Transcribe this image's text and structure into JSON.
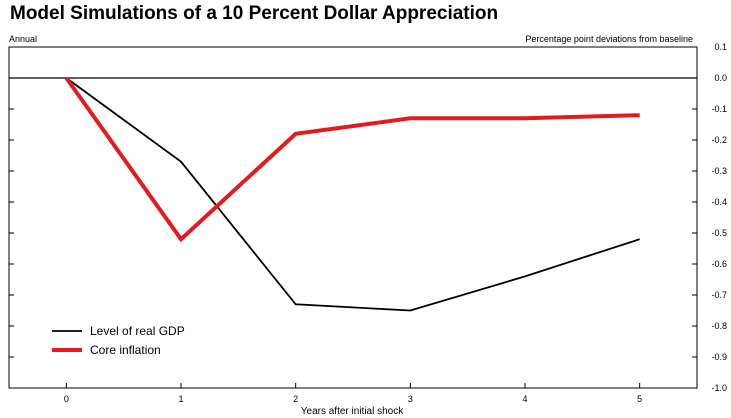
{
  "chart_data": {
    "type": "line",
    "title": "Model Simulations of a 10 Percent Dollar Appreciation",
    "left_note": "Annual",
    "right_note": "Percentage point deviations from baseline",
    "xlabel": "Years after initial shock",
    "x": [
      0,
      1,
      2,
      3,
      4,
      5
    ],
    "xlim": [
      -0.5,
      5.5
    ],
    "ylim": [
      -1.0,
      0.1
    ],
    "y_ticks": [
      0.1,
      0.0,
      -0.1,
      -0.2,
      -0.3,
      -0.4,
      -0.5,
      -0.6,
      -0.7,
      -0.8,
      -0.9,
      -1.0
    ],
    "y_tick_labels": [
      "0.1",
      "0.0",
      "-0.1",
      "-0.2",
      "-0.3",
      "-0.4",
      "-0.5",
      "-0.6",
      "-0.7",
      "-0.8",
      "-0.9",
      "-1.0"
    ],
    "x_ticks": [
      0,
      1,
      2,
      3,
      4,
      5
    ],
    "x_tick_labels": [
      "0",
      "1",
      "2",
      "3",
      "4",
      "5"
    ],
    "grid": false,
    "zero_line": true,
    "legend_position": "bottom-left",
    "series": [
      {
        "name": "Level of real GDP",
        "color": "#000000",
        "values": [
          0.0,
          -0.27,
          -0.73,
          -0.75,
          -0.64,
          -0.52
        ]
      },
      {
        "name": "Core inflation",
        "color": "#e41a1c",
        "values": [
          0.0,
          -0.52,
          -0.18,
          -0.13,
          -0.13,
          -0.12
        ]
      }
    ]
  }
}
